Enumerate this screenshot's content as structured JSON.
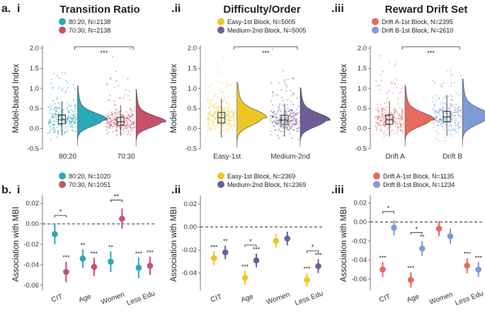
{
  "colors": {
    "teal": "#2BA9B9",
    "rose": "#C9506A",
    "yellow": "#EDC625",
    "purple": "#6E5E98",
    "coral": "#E8695D",
    "blue": "#7E9AD8",
    "axis": "#555555",
    "text": "#222222"
  },
  "panel_labels": {
    "a": "a.",
    "a_i": "i",
    "a_ii": ".ii",
    "a_iii": ".iii",
    "b": "b.",
    "b_i": "i",
    "b_ii": ".ii",
    "b_iii": ".iii"
  },
  "sig_stars": "***",
  "chart_data": [
    {
      "id": "a_i",
      "type": "raincloud",
      "title": "Transition Ratio",
      "ylabel": "Model-based Index",
      "ylim": [
        -0.5,
        2.0
      ],
      "yticks": [
        "-0.5",
        "0.0",
        "0.5",
        "1.0",
        "1.5",
        "2.0"
      ],
      "ytick_values": [
        -0.5,
        0,
        0.5,
        1.0,
        1.5,
        2.0
      ],
      "categories": [
        "80:20",
        "70:30"
      ],
      "legend": [
        {
          "label": "80:20, N=2138",
          "color": "#2BA9B9"
        },
        {
          "label": "70:30, N=2138",
          "color": "#C9506A"
        }
      ],
      "box": [
        {
          "q1": 0.12,
          "median": 0.22,
          "q3": 0.34,
          "whisker_low": -0.17,
          "whisker_high": 0.67
        },
        {
          "q1": 0.08,
          "median": 0.17,
          "q3": 0.28,
          "whisker_low": -0.18,
          "whisker_high": 0.58
        }
      ],
      "significance": "***"
    },
    {
      "id": "a_ii",
      "type": "raincloud",
      "title": "Difficulty/Order",
      "ylabel": "Model-based Index",
      "ylim": [
        -0.5,
        2.0
      ],
      "yticks": [
        "-0.5",
        "0.0",
        "0.5",
        "1.0",
        "1.5",
        "2.0"
      ],
      "ytick_values": [
        -0.5,
        0,
        0.5,
        1.0,
        1.5,
        2.0
      ],
      "categories": [
        "Easy-1st",
        "Medium-2nd"
      ],
      "legend": [
        {
          "label": "Easy-1st Block, N=5005",
          "color": "#EDC625"
        },
        {
          "label": "Medium-2nd Block, N=5005",
          "color": "#6E5E98"
        }
      ],
      "box": [
        {
          "q1": 0.14,
          "median": 0.27,
          "q3": 0.4,
          "whisker_low": -0.22,
          "whisker_high": 0.75
        },
        {
          "q1": 0.1,
          "median": 0.21,
          "q3": 0.33,
          "whisker_low": -0.2,
          "whisker_high": 0.62
        }
      ],
      "significance": "***"
    },
    {
      "id": "a_iii",
      "type": "raincloud",
      "title": "Reward Drift Set",
      "ylabel": "Model-based Index",
      "ylim": [
        -0.5,
        2.0
      ],
      "yticks": [
        "-0.5",
        "0.0",
        "0.5",
        "1.0",
        "1.5",
        "2.0"
      ],
      "ytick_values": [
        -0.5,
        0,
        0.5,
        1.0,
        1.5,
        2.0
      ],
      "categories": [
        "Drift A",
        "Drift B"
      ],
      "legend": [
        {
          "label": "Drift A-1st Block, N=2395",
          "color": "#E8695D"
        },
        {
          "label": "Drift B-1st Block, N=2610",
          "color": "#7E9AD8"
        }
      ],
      "box": [
        {
          "q1": 0.11,
          "median": 0.22,
          "q3": 0.34,
          "whisker_low": -0.19,
          "whisker_high": 0.68
        },
        {
          "q1": 0.17,
          "median": 0.29,
          "q3": 0.43,
          "whisker_low": -0.18,
          "whisker_high": 0.84
        }
      ],
      "significance": "***"
    },
    {
      "id": "b_i",
      "type": "pointrange",
      "ylabel": "Association with MBI",
      "ylim": [
        -0.065,
        0.025
      ],
      "yticks": [
        "-0.06",
        "-0.04",
        "-0.02",
        "0.00",
        "0.02"
      ],
      "ytick_values": [
        -0.06,
        -0.04,
        -0.02,
        0,
        0.02
      ],
      "categories": [
        "CIT",
        "Age",
        "Women",
        "Less Edu"
      ],
      "series": [
        {
          "name": "80:20, N=1020",
          "color": "#2BA9B9",
          "values": [
            -0.01,
            -0.034,
            -0.037,
            -0.043
          ],
          "ci": [
            [
              -0.02,
              0.0
            ],
            [
              -0.043,
              -0.025
            ],
            [
              -0.047,
              -0.027
            ],
            [
              -0.053,
              -0.033
            ]
          ],
          "sig": [
            "",
            "**",
            "**",
            "***"
          ]
        },
        {
          "name": "70:30, N=1051",
          "color": "#C9506A",
          "values": [
            -0.047,
            -0.042,
            0.005,
            -0.041
          ],
          "ci": [
            [
              -0.057,
              -0.037
            ],
            [
              -0.051,
              -0.033
            ],
            [
              -0.005,
              0.015
            ],
            [
              -0.05,
              -0.032
            ]
          ],
          "sig": [
            "***",
            "***",
            "",
            "***"
          ]
        }
      ],
      "pair_sig": [
        "*",
        "",
        "**",
        ""
      ]
    },
    {
      "id": "b_ii",
      "type": "pointrange",
      "ylabel": "Association with MBI",
      "ylim": [
        -0.055,
        0.025
      ],
      "yticks": [
        "-0.04",
        "-0.02",
        "0.00",
        "0.02"
      ],
      "ytick_values": [
        -0.04,
        -0.02,
        0,
        0.02
      ],
      "categories": [
        "CIT",
        "Age",
        "Women",
        "Less Edu"
      ],
      "series": [
        {
          "name": "Easy-1st Block, N=2369",
          "color": "#EDC625",
          "values": [
            -0.027,
            -0.044,
            -0.012,
            -0.046
          ],
          "ci": [
            [
              -0.033,
              -0.021
            ],
            [
              -0.05,
              -0.038
            ],
            [
              -0.018,
              -0.006
            ],
            [
              -0.052,
              -0.04
            ]
          ],
          "sig": [
            "***",
            "***",
            "",
            "***"
          ]
        },
        {
          "name": "Medium-2nd Block, N=2369",
          "color": "#6E5E98",
          "values": [
            -0.022,
            -0.029,
            -0.01,
            -0.034
          ],
          "ci": [
            [
              -0.028,
              -0.016
            ],
            [
              -0.035,
              -0.023
            ],
            [
              -0.016,
              -0.004
            ],
            [
              -0.04,
              -0.028
            ]
          ],
          "sig": [
            "**",
            "***",
            "",
            "***"
          ]
        }
      ],
      "pair_sig": [
        "",
        "*",
        "",
        "*"
      ]
    },
    {
      "id": "b_iii",
      "type": "pointrange",
      "ylabel": "Association with MBI",
      "ylim": [
        -0.072,
        0.025
      ],
      "yticks": [
        "-0.06",
        "-0.04",
        "-0.02",
        "0.00",
        "0.02"
      ],
      "ytick_values": [
        -0.06,
        -0.04,
        -0.02,
        0,
        0.02
      ],
      "categories": [
        "CIT",
        "Age",
        "Women",
        "Less Edu"
      ],
      "series": [
        {
          "name": "Drift A-1st Block, N=1135",
          "color": "#E8695D",
          "values": [
            -0.05,
            -0.061,
            -0.007,
            -0.046
          ],
          "ci": [
            [
              -0.058,
              -0.042
            ],
            [
              -0.069,
              -0.053
            ],
            [
              -0.015,
              0.001
            ],
            [
              -0.054,
              -0.038
            ]
          ],
          "sig": [
            "***",
            "***",
            "",
            "***"
          ]
        },
        {
          "name": "Drift B-1st Block, N=1234",
          "color": "#7E9AD8",
          "values": [
            -0.006,
            -0.028,
            -0.015,
            -0.05
          ],
          "ci": [
            [
              -0.014,
              0.002
            ],
            [
              -0.036,
              -0.02
            ],
            [
              -0.023,
              -0.007
            ],
            [
              -0.058,
              -0.042
            ]
          ],
          "sig": [
            "",
            "**",
            "",
            "***"
          ]
        }
      ],
      "pair_sig": [
        "*",
        "*",
        "",
        ""
      ]
    }
  ]
}
